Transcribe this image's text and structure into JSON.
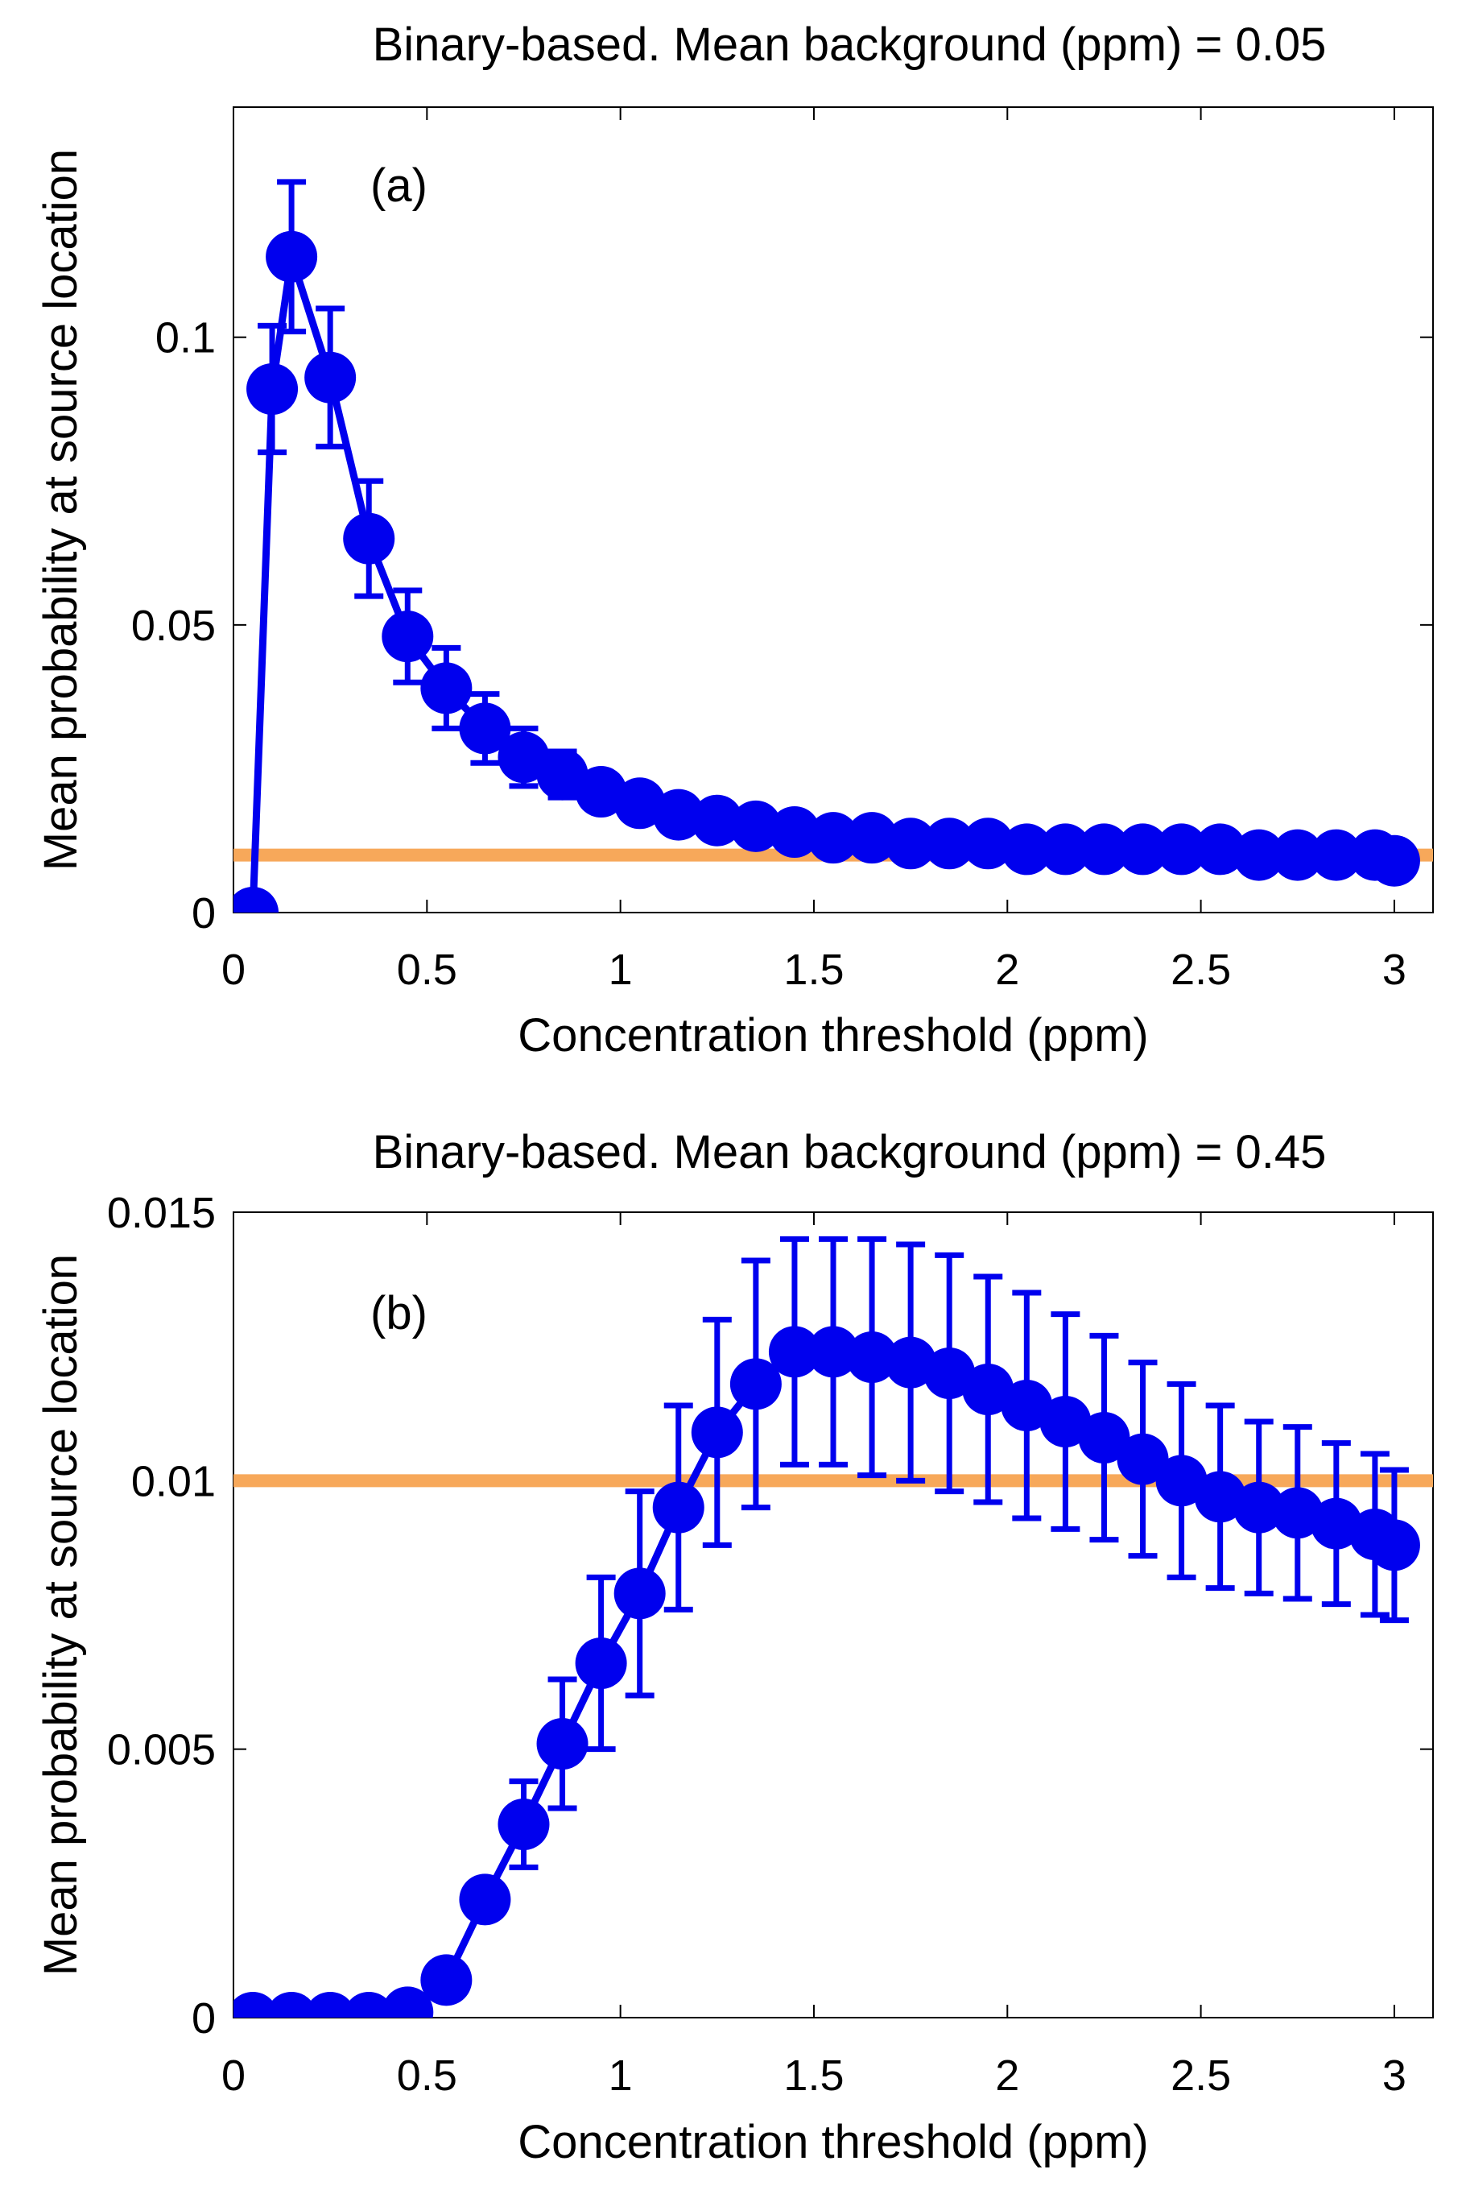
{
  "colors": {
    "series": "#0000ee",
    "reference": "#f7a85a",
    "axes": "#000000"
  },
  "chart_data": [
    {
      "type": "line",
      "panel_label": "(a)",
      "title": "Binary-based. Mean background (ppm) = 0.05",
      "xlabel": "Concentration threshold (ppm)",
      "ylabel": "Mean probability at source location",
      "xlim": [
        0,
        3.1
      ],
      "ylim": [
        0,
        0.14
      ],
      "xticks": [
        "0",
        "0.5",
        "1",
        "1.5",
        "2",
        "2.5",
        "3"
      ],
      "xtick_values": [
        0,
        0.5,
        1,
        1.5,
        2,
        2.5,
        3
      ],
      "yticks": [
        "0",
        "0.05",
        "0.1"
      ],
      "ytick_values": [
        0,
        0.05,
        0.1
      ],
      "grid": false,
      "series": [
        {
          "x": [
            0.05,
            0.1,
            0.15,
            0.25,
            0.35,
            0.45,
            0.55,
            0.65,
            0.75,
            0.85,
            0.95,
            1.05,
            1.15,
            1.25,
            1.35,
            1.45,
            1.55,
            1.65,
            1.75,
            1.85,
            1.95,
            2.05,
            2.15,
            2.25,
            2.35,
            2.45,
            2.55,
            2.65,
            2.75,
            2.85,
            2.95,
            3.0
          ],
          "y": [
            0.0,
            0.091,
            0.114,
            0.093,
            0.065,
            0.048,
            0.039,
            0.032,
            0.027,
            0.024,
            0.021,
            0.019,
            0.017,
            0.016,
            0.015,
            0.014,
            0.013,
            0.013,
            0.012,
            0.012,
            0.012,
            0.011,
            0.011,
            0.011,
            0.011,
            0.011,
            0.011,
            0.01,
            0.01,
            0.01,
            0.01,
            0.009
          ],
          "error": [
            0.0,
            0.011,
            0.013,
            0.012,
            0.01,
            0.008,
            0.007,
            0.006,
            0.005,
            0.004,
            0.003,
            0.002,
            0.002,
            0.002,
            0.001,
            0.001,
            0.001,
            0.001,
            0.001,
            0.001,
            0.001,
            0.001,
            0.001,
            0.001,
            0.001,
            0.001,
            0.001,
            0.001,
            0.001,
            0.001,
            0.001,
            0.001
          ]
        }
      ],
      "reference_line": 0.01
    },
    {
      "type": "line",
      "panel_label": "(b)",
      "title": "Binary-based. Mean background (ppm) = 0.45",
      "xlabel": "Concentration threshold (ppm)",
      "ylabel": "Mean probability at source location",
      "xlim": [
        0,
        3.1
      ],
      "ylim": [
        0,
        0.015
      ],
      "xticks": [
        "0",
        "0.5",
        "1",
        "1.5",
        "2",
        "2.5",
        "3"
      ],
      "xtick_values": [
        0,
        0.5,
        1,
        1.5,
        2,
        2.5,
        3
      ],
      "yticks": [
        "0",
        "0.005",
        "0.01",
        "0.015"
      ],
      "ytick_values": [
        0,
        0.005,
        0.01,
        0.015
      ],
      "grid": false,
      "series": [
        {
          "x": [
            0.05,
            0.15,
            0.25,
            0.35,
            0.45,
            0.55,
            0.65,
            0.75,
            0.85,
            0.95,
            1.05,
            1.15,
            1.25,
            1.35,
            1.45,
            1.55,
            1.65,
            1.75,
            1.85,
            1.95,
            2.05,
            2.15,
            2.25,
            2.35,
            2.45,
            2.55,
            2.65,
            2.75,
            2.85,
            2.95,
            3.0
          ],
          "y": [
            0.0,
            0.0,
            0.0,
            0.0,
            0.0001,
            0.0007,
            0.0022,
            0.0036,
            0.0051,
            0.0066,
            0.0079,
            0.0095,
            0.0109,
            0.0118,
            0.0124,
            0.0124,
            0.0123,
            0.0122,
            0.012,
            0.0117,
            0.0114,
            0.0111,
            0.0108,
            0.0104,
            0.01,
            0.0097,
            0.0095,
            0.0094,
            0.0092,
            0.009,
            0.0088
          ],
          "error": [
            0.0,
            0.0,
            0.0,
            0.0,
            0.0,
            0.0,
            0.0,
            0.0008,
            0.0012,
            0.0016,
            0.0019,
            0.0019,
            0.0021,
            0.0023,
            0.0021,
            0.0021,
            0.0022,
            0.0022,
            0.0022,
            0.0021,
            0.0021,
            0.002,
            0.0019,
            0.0018,
            0.0018,
            0.0017,
            0.0016,
            0.0016,
            0.0015,
            0.0015,
            0.0014
          ]
        }
      ],
      "reference_line": 0.01
    }
  ]
}
